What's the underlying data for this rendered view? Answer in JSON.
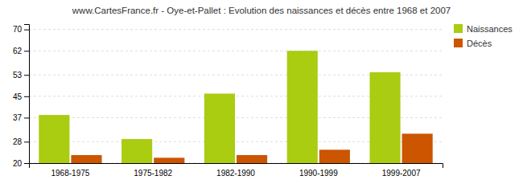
{
  "chart_data": {
    "type": "bar",
    "title": "www.CartesFrance.fr - Oye-et-Pallet : Evolution des naissances et décès entre 1968 et 2007",
    "categories": [
      "1968-1975",
      "1975-1982",
      "1982-1990",
      "1990-1999",
      "1999-2007"
    ],
    "series": [
      {
        "name": "Naissances",
        "color": "#aacc11",
        "values": [
          38,
          29,
          46,
          62,
          54
        ]
      },
      {
        "name": "Décès",
        "color": "#cc5500",
        "values": [
          23,
          22,
          23,
          25,
          31
        ]
      }
    ],
    "ylim": [
      20,
      72
    ],
    "yticks": [
      20,
      28,
      37,
      45,
      53,
      62,
      70
    ],
    "grid": true,
    "legend": "upper-right"
  }
}
